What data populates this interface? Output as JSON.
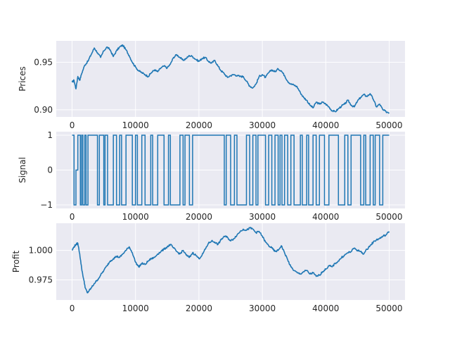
{
  "chart_data": [
    {
      "type": "line",
      "title": "",
      "xlabel": "",
      "ylabel": "Prices",
      "xlim": [
        -2500,
        52500
      ],
      "ylim": [
        0.8925,
        0.9725
      ],
      "xticks": [
        0,
        10000,
        20000,
        30000,
        40000,
        50000
      ],
      "xtick_labels": [
        "0",
        "10000",
        "20000",
        "30000",
        "40000",
        "50000"
      ],
      "yticks": [
        0.9,
        0.95
      ],
      "ytick_labels": [
        "0.90",
        "0.95"
      ],
      "grid": true,
      "color": "#1f77b4",
      "series": [
        {
          "x": [
            0,
            300,
            600,
            900,
            1200,
            1500,
            2000,
            2500,
            3000,
            3500,
            4000,
            4500,
            5000,
            5500,
            6000,
            6500,
            7000,
            7500,
            8000,
            8500,
            9000,
            9500,
            10000,
            10500,
            11000,
            11500,
            12000,
            12500,
            13000,
            13500,
            14000,
            14500,
            15000,
            15500,
            16000,
            16500,
            17000,
            17500,
            18000,
            18500,
            19000,
            19500,
            20000,
            20500,
            21000,
            21500,
            22000,
            22500,
            23000,
            23500,
            24000,
            24500,
            25000,
            25500,
            26000,
            26500,
            27000,
            27500,
            28000,
            28500,
            29000,
            29500,
            30000,
            30500,
            31000,
            31500,
            32000,
            32500,
            33000,
            33500,
            34000,
            34500,
            35000,
            35500,
            36000,
            36500,
            37000,
            37500,
            38000,
            38500,
            39000,
            39500,
            40000,
            40500,
            41000,
            41500,
            42000,
            42500,
            43000,
            43500,
            44000,
            44500,
            45000,
            45500,
            46000,
            46500,
            47000,
            47500,
            48000,
            48500,
            49000,
            49500,
            50000
          ],
          "values": [
            0.929,
            0.931,
            0.922,
            0.935,
            0.931,
            0.938,
            0.947,
            0.951,
            0.958,
            0.965,
            0.96,
            0.955,
            0.962,
            0.966,
            0.963,
            0.956,
            0.962,
            0.966,
            0.968,
            0.963,
            0.957,
            0.95,
            0.945,
            0.941,
            0.939,
            0.937,
            0.935,
            0.939,
            0.942,
            0.94,
            0.944,
            0.946,
            0.944,
            0.948,
            0.955,
            0.958,
            0.955,
            0.952,
            0.954,
            0.957,
            0.956,
            0.953,
            0.951,
            0.954,
            0.955,
            0.951,
            0.949,
            0.952,
            0.946,
            0.941,
            0.938,
            0.934,
            0.936,
            0.937,
            0.936,
            0.935,
            0.935,
            0.93,
            0.925,
            0.923,
            0.927,
            0.935,
            0.937,
            0.934,
            0.939,
            0.942,
            0.94,
            0.943,
            0.941,
            0.936,
            0.93,
            0.927,
            0.926,
            0.924,
            0.918,
            0.913,
            0.91,
            0.905,
            0.902,
            0.908,
            0.906,
            0.908,
            0.906,
            0.903,
            0.899,
            0.898,
            0.901,
            0.904,
            0.906,
            0.91,
            0.905,
            0.903,
            0.909,
            0.913,
            0.916,
            0.914,
            0.917,
            0.911,
            0.903,
            0.906,
            0.9,
            0.898,
            0.897
          ]
        }
      ]
    },
    {
      "type": "line",
      "title": "",
      "xlabel": "",
      "ylabel": "Signal",
      "xlim": [
        -2500,
        52500
      ],
      "ylim": [
        -1.1,
        1.1
      ],
      "xticks": [
        0,
        10000,
        20000,
        30000,
        40000,
        50000
      ],
      "xtick_labels": [
        "0",
        "10000",
        "20000",
        "30000",
        "40000",
        "50000"
      ],
      "yticks": [
        -1,
        0,
        1
      ],
      "ytick_labels": [
        "−1",
        "0",
        "1"
      ],
      "grid": true,
      "color": "#1f77b4",
      "series": [
        {
          "x": [
            0,
            300,
            600,
            900,
            1300,
            1500,
            1700,
            2000,
            2200,
            2500,
            4000,
            4300,
            5000,
            5200,
            5600,
            6500,
            7000,
            7500,
            7800,
            8500,
            9500,
            10000,
            10300,
            11000,
            11500,
            12400,
            12700,
            13500,
            14500,
            15200,
            15500,
            17000,
            17500,
            17800,
            18500,
            19000,
            24000,
            24300,
            25000,
            25600,
            26000,
            27500,
            28000,
            28500,
            29000,
            29300,
            30500,
            31000,
            31500,
            32000,
            32500,
            32800,
            33100,
            33500,
            34000,
            34500,
            35000,
            36000,
            36300,
            37000,
            37300,
            38000,
            38500,
            39000,
            39800,
            40500,
            42000,
            43000,
            43500,
            44000,
            45500,
            46000,
            46300,
            47000,
            47500,
            47800,
            48500,
            49000,
            50000
          ],
          "values": [
            1,
            -1,
            0,
            1,
            -1,
            1,
            -1,
            1,
            -1,
            1,
            -1,
            1,
            -1,
            1,
            -1,
            1,
            -1,
            1,
            -1,
            1,
            -1,
            1,
            -1,
            1,
            -1,
            1,
            -1,
            1,
            -1,
            1,
            -1,
            1,
            -1,
            1,
            -1,
            1,
            -1,
            1,
            -1,
            1,
            -1,
            1,
            -1,
            1,
            -1,
            1,
            -1,
            1,
            -1,
            1,
            -1,
            1,
            -1,
            1,
            -1,
            1,
            -1,
            1,
            -1,
            1,
            -1,
            1,
            -1,
            1,
            -1,
            1,
            -1,
            1,
            -1,
            1,
            -1,
            1,
            -1,
            1,
            -1,
            1,
            -1,
            1,
            1
          ]
        }
      ]
    },
    {
      "type": "line",
      "title": "",
      "xlabel": "",
      "ylabel": "Profit",
      "xlim": [
        -2500,
        52500
      ],
      "ylim": [
        0.958,
        1.023
      ],
      "xticks": [
        0,
        10000,
        20000,
        30000,
        40000,
        50000
      ],
      "xtick_labels": [
        "0",
        "10000",
        "20000",
        "30000",
        "40000",
        "50000"
      ],
      "yticks": [
        0.975,
        1.0
      ],
      "ytick_labels": [
        "0.975",
        "1.000"
      ],
      "grid": true,
      "color": "#1f77b4",
      "series": [
        {
          "x": [
            0,
            300,
            600,
            900,
            1200,
            1500,
            1800,
            2100,
            2400,
            2700,
            3000,
            3500,
            4000,
            4500,
            5000,
            5500,
            6000,
            6500,
            7000,
            7500,
            8000,
            8500,
            9000,
            9500,
            10000,
            10500,
            11000,
            11500,
            12000,
            12500,
            13000,
            13500,
            14000,
            14500,
            15000,
            15500,
            16000,
            16500,
            17000,
            17500,
            18000,
            18500,
            19000,
            19500,
            20000,
            20500,
            21000,
            21500,
            22000,
            22500,
            23000,
            23500,
            24000,
            24500,
            25000,
            25500,
            26000,
            26500,
            27000,
            27500,
            28000,
            28500,
            29000,
            29500,
            30000,
            30500,
            31000,
            31500,
            32000,
            32500,
            33000,
            33500,
            34000,
            34500,
            35000,
            35500,
            36000,
            36500,
            37000,
            37500,
            38000,
            38500,
            39000,
            39500,
            40000,
            40500,
            41000,
            41500,
            42000,
            42500,
            43000,
            43500,
            44000,
            44500,
            45000,
            45500,
            46000,
            46500,
            47000,
            47500,
            48000,
            48500,
            49000,
            49500,
            50000
          ],
          "values": [
            1.0,
            1.003,
            1.005,
            1.006,
            0.997,
            0.985,
            0.976,
            0.968,
            0.964,
            0.966,
            0.968,
            0.972,
            0.975,
            0.979,
            0.983,
            0.987,
            0.991,
            0.993,
            0.995,
            0.994,
            0.997,
            1.0,
            1.003,
            0.998,
            0.99,
            0.986,
            0.989,
            0.988,
            0.991,
            0.993,
            0.994,
            0.997,
            0.999,
            1.001,
            1.003,
            1.005,
            1.002,
            0.999,
            0.997,
            1.0,
            0.996,
            0.994,
            0.998,
            0.996,
            0.993,
            0.996,
            1.001,
            1.006,
            1.008,
            1.007,
            1.005,
            1.009,
            1.012,
            1.011,
            1.008,
            1.01,
            1.013,
            1.016,
            1.018,
            1.017,
            1.019,
            1.018,
            1.015,
            1.016,
            1.012,
            1.007,
            1.004,
            1.002,
            0.999,
            1.0,
            1.004,
            0.998,
            0.992,
            0.986,
            0.983,
            0.981,
            0.98,
            0.982,
            0.983,
            0.98,
            0.981,
            0.978,
            0.979,
            0.982,
            0.984,
            0.987,
            0.986,
            0.989,
            0.991,
            0.994,
            0.996,
            0.998,
            0.999,
            1.002,
            1.0,
            0.999,
            0.997,
            1.001,
            1.004,
            1.007,
            1.009,
            1.01,
            1.012,
            1.013,
            1.016
          ]
        }
      ]
    }
  ]
}
